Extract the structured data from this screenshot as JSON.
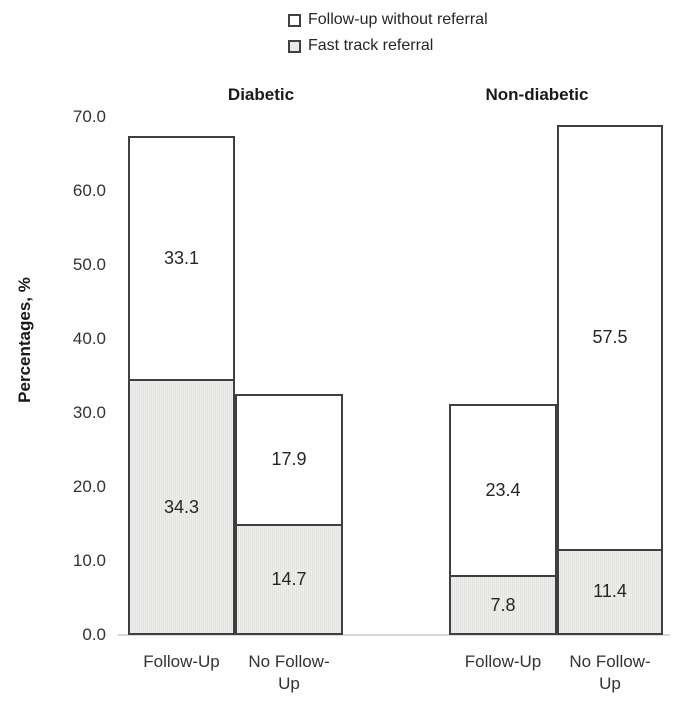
{
  "legend": {
    "items": [
      {
        "label": "Follow-up without referral",
        "fill": "#ffffff"
      },
      {
        "label": "Fast track referral",
        "fill": "#e9e9e8"
      }
    ]
  },
  "chart_data": {
    "type": "bar",
    "stacked": true,
    "ylabel": "Percentages, %",
    "ylim": [
      0,
      70
    ],
    "ytick_values": [
      70,
      60,
      50,
      40,
      30,
      20,
      10,
      0
    ],
    "ytick_labels": [
      "70.0",
      "60.0",
      "50.0",
      "40.0",
      "30.0",
      "20.0",
      "10.0",
      "0.0"
    ],
    "grid": false,
    "legend_position": "top",
    "series": [
      {
        "name": "Fast track referral",
        "fill": "#e9e9e8"
      },
      {
        "name": "Follow-up without referral",
        "fill": "#ffffff"
      }
    ],
    "groups": [
      {
        "title": "Diabetic",
        "bars": [
          {
            "category": "Follow-Up",
            "segments": [
              {
                "series": "Fast track referral",
                "value": 34.3
              },
              {
                "series": "Follow-up without referral",
                "value": 33.1
              }
            ]
          },
          {
            "category": "No Follow-Up",
            "segments": [
              {
                "series": "Fast track referral",
                "value": 14.7
              },
              {
                "series": "Follow-up without referral",
                "value": 17.9
              }
            ]
          }
        ]
      },
      {
        "title": "Non-diabetic",
        "bars": [
          {
            "category": "Follow-Up",
            "segments": [
              {
                "series": "Fast track referral",
                "value": 7.8
              },
              {
                "series": "Follow-up without referral",
                "value": 23.4
              }
            ]
          },
          {
            "category": "No Follow-Up",
            "segments": [
              {
                "series": "Fast track referral",
                "value": 11.4
              },
              {
                "series": "Follow-up without referral",
                "value": 57.5
              }
            ]
          }
        ]
      }
    ]
  },
  "colors": {
    "bar_border": "#3f3f3f",
    "gray_fill": "#e9e9e8",
    "axis_baseline": "#d9d9d9",
    "text": "#262626"
  }
}
